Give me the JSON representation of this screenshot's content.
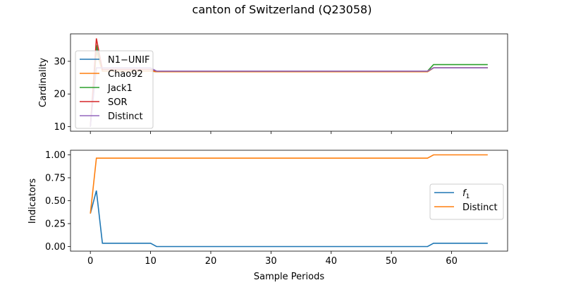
{
  "chart_data": [
    {
      "type": "line",
      "title": "canton of Switzerland (Q23058)",
      "xlabel": "",
      "ylabel": "Cardinality",
      "xlim": [
        -3.3,
        69.3
      ],
      "ylim": [
        8.6,
        38.4
      ],
      "x_ticks": [
        "0",
        "10",
        "20",
        "30",
        "40",
        "50",
        "60"
      ],
      "y_ticks": [
        "10",
        "20",
        "30"
      ],
      "legend_position": "upper-left",
      "series": [
        {
          "name": "N1−UNIF",
          "color": "#1f77b4",
          "points": [
            [
              0,
              10
            ],
            [
              1,
              34
            ],
            [
              2,
              27
            ],
            [
              3,
              27
            ],
            [
              10,
              27
            ],
            [
              11,
              26.8
            ],
            [
              56,
              26.8
            ],
            [
              57,
              28
            ],
            [
              66,
              28
            ]
          ]
        },
        {
          "name": "Chao92",
          "color": "#ff7f0e",
          "points": [
            [
              0,
              10
            ],
            [
              1,
              33
            ],
            [
              2,
              27
            ],
            [
              3,
              27
            ],
            [
              10,
              27
            ],
            [
              11,
              26.8
            ],
            [
              56,
              26.8
            ],
            [
              57,
              28
            ],
            [
              66,
              28
            ]
          ]
        },
        {
          "name": "Jack1",
          "color": "#2ca02c",
          "points": [
            [
              0,
              10
            ],
            [
              1,
              35
            ],
            [
              2,
              27.5
            ],
            [
              3,
              27.5
            ],
            [
              10,
              27.5
            ],
            [
              11,
              27
            ],
            [
              56,
              27
            ],
            [
              57,
              29
            ],
            [
              66,
              29
            ]
          ]
        },
        {
          "name": "SOR",
          "color": "#d62728",
          "points": [
            [
              0,
              10
            ],
            [
              1,
              37
            ],
            [
              2,
              27.5
            ],
            [
              3,
              27.5
            ],
            [
              10,
              27.5
            ],
            [
              11,
              27
            ],
            [
              56,
              27
            ],
            [
              57,
              28
            ],
            [
              66,
              28
            ]
          ]
        },
        {
          "name": "Distinct",
          "color": "#9467bd",
          "points": [
            [
              0,
              10
            ],
            [
              1,
              28
            ],
            [
              2,
              28
            ],
            [
              10,
              28
            ],
            [
              11,
              27
            ],
            [
              56,
              27
            ],
            [
              57,
              28
            ],
            [
              66,
              28
            ]
          ]
        }
      ]
    },
    {
      "type": "line",
      "title": "",
      "xlabel": "Sample Periods",
      "ylabel": "Indicators",
      "xlim": [
        -3.3,
        69.3
      ],
      "ylim": [
        -0.05,
        1.05
      ],
      "x_ticks": [
        "0",
        "10",
        "20",
        "30",
        "40",
        "50",
        "60"
      ],
      "y_ticks": [
        "0.00",
        "0.25",
        "0.50",
        "0.75",
        "1.00"
      ],
      "legend_position": "center-right",
      "series": [
        {
          "name": "f1",
          "color": "#1f77b4",
          "points": [
            [
              0,
              0.36
            ],
            [
              1,
              0.61
            ],
            [
              2,
              0.036
            ],
            [
              10,
              0.036
            ],
            [
              11,
              0
            ],
            [
              56,
              0
            ],
            [
              57,
              0.036
            ],
            [
              66,
              0.036
            ]
          ]
        },
        {
          "name": "Distinct",
          "color": "#ff7f0e",
          "points": [
            [
              0,
              0.36
            ],
            [
              1,
              0.964
            ],
            [
              56,
              0.964
            ],
            [
              57,
              1.0
            ],
            [
              66,
              1.0
            ]
          ]
        }
      ]
    }
  ]
}
